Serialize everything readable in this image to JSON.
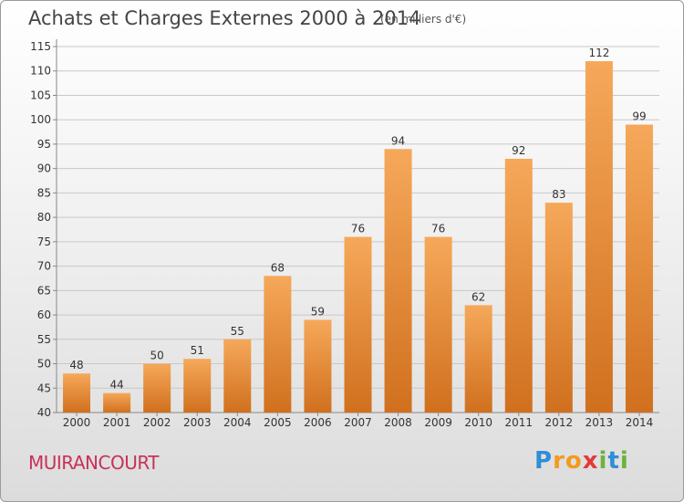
{
  "header": {
    "title": "Achats et Charges Externes 2000 à 2014",
    "subtitle": "(en milliers d'€)"
  },
  "footer": {
    "commune": "MUIRANCOURT",
    "logo_letters": [
      "P",
      "r",
      "o",
      "x",
      "i",
      "t",
      "i"
    ]
  },
  "colors": {
    "bar_top": "#f6a85a",
    "bar_bottom": "#d0701e",
    "grid": "#c8c8c8",
    "commune": "#c8325a",
    "logo": [
      "#2f8ed8",
      "#f39a1f",
      "#f39a1f",
      "#e23b3b",
      "#6cb33e",
      "#2f8ed8",
      "#6cb33e"
    ]
  },
  "chart_data": {
    "type": "bar",
    "title": "Achats et Charges Externes 2000 à 2014",
    "subtitle": "(en milliers d'€)",
    "categories": [
      "2000",
      "2001",
      "2002",
      "2003",
      "2004",
      "2005",
      "2006",
      "2007",
      "2008",
      "2009",
      "2010",
      "2011",
      "2012",
      "2013",
      "2014"
    ],
    "values": [
      48,
      44,
      50,
      51,
      55,
      68,
      59,
      76,
      94,
      76,
      62,
      92,
      83,
      112,
      99
    ],
    "ylim": [
      40,
      115
    ],
    "yticks": [
      40,
      45,
      50,
      55,
      60,
      65,
      70,
      75,
      80,
      85,
      90,
      95,
      100,
      105,
      110,
      115
    ],
    "grid": true,
    "data_labels": true
  }
}
